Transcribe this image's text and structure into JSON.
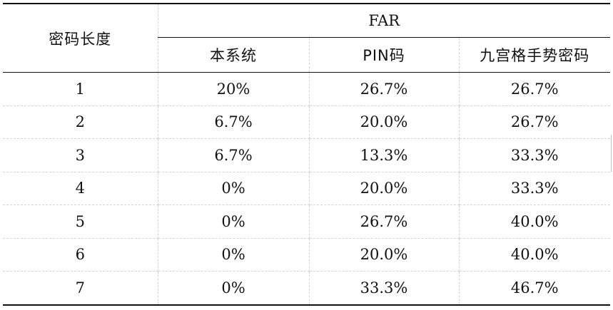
{
  "table": {
    "row_header": "密码长度",
    "group_header": "FAR",
    "columns": [
      "本系统",
      "PIN码",
      "九宫格手势密码"
    ],
    "rows": [
      {
        "length": "1",
        "values": [
          "20%",
          "26.7%",
          "26.7%"
        ]
      },
      {
        "length": "2",
        "values": [
          "6.7%",
          "20.0%",
          "26.7%"
        ]
      },
      {
        "length": "3",
        "values": [
          "6.7%",
          "13.3%",
          "33.3%"
        ]
      },
      {
        "length": "4",
        "values": [
          "0%",
          "20.0%",
          "33.3%"
        ]
      },
      {
        "length": "5",
        "values": [
          "0%",
          "26.7%",
          "40.0%"
        ]
      },
      {
        "length": "6",
        "values": [
          "0%",
          "20.0%",
          "40.0%"
        ]
      },
      {
        "length": "7",
        "values": [
          "0%",
          "33.3%",
          "46.7%"
        ]
      }
    ]
  }
}
